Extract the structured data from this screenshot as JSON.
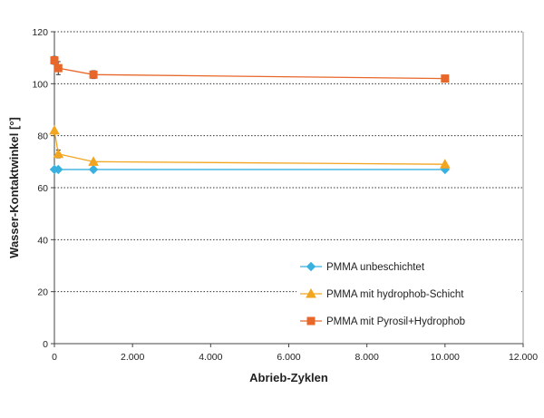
{
  "chart_data": {
    "type": "line",
    "xlabel": "Abrieb-Zyklen",
    "ylabel": "Wasser-Kontaktwinkel [°]",
    "xlim": [
      0,
      12000
    ],
    "ylim": [
      0,
      120
    ],
    "x_ticks": [
      0,
      2000,
      4000,
      6000,
      8000,
      10000,
      12000
    ],
    "x_tick_labels": [
      "0",
      "2.000",
      "4.000",
      "6.000",
      "8.000",
      "10.000",
      "12.000"
    ],
    "y_ticks": [
      0,
      20,
      40,
      60,
      80,
      100,
      120
    ],
    "y_tick_labels": [
      "0",
      "20",
      "40",
      "60",
      "80",
      "100",
      "120"
    ],
    "grid": "horizontal dotted",
    "legend_position": "lower-right inside plot",
    "series": [
      {
        "name": "PMMA unbeschichtet",
        "color": "#39b1e0",
        "marker": "diamond",
        "x": [
          0,
          100,
          1000,
          10000
        ],
        "y": [
          67,
          67,
          67,
          67
        ],
        "err": [
          0,
          0,
          0,
          0
        ]
      },
      {
        "name": "PMMA mit hydrophob-Schicht",
        "color": "#f2a51e",
        "marker": "triangle",
        "x": [
          0,
          100,
          1000,
          10000
        ],
        "y": [
          82,
          73,
          70,
          69
        ],
        "err": [
          0,
          1.5,
          0,
          0
        ]
      },
      {
        "name": "PMMA mit Pyrosil+Hydrophob",
        "color": "#e8672a",
        "marker": "square",
        "x": [
          0,
          100,
          1000,
          10000
        ],
        "y": [
          109,
          106,
          103.5,
          102
        ],
        "err": [
          1.5,
          2.5,
          1.5,
          1
        ]
      }
    ]
  }
}
